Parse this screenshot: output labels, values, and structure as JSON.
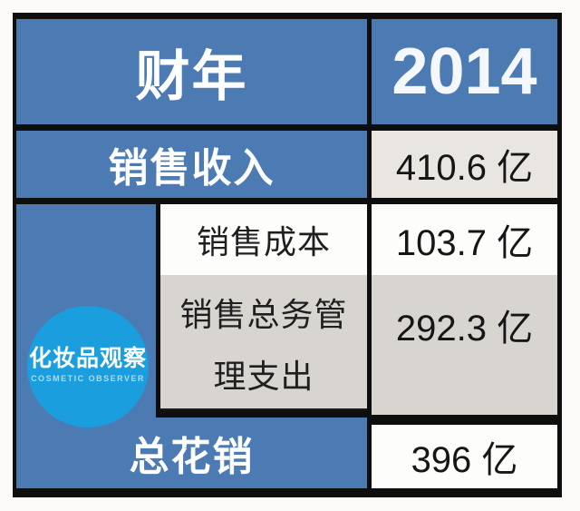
{
  "colors": {
    "table_blue": "#4c7bb4",
    "logo_blue": "#1b9ede",
    "cell_light_gray": "#e9e6e2",
    "cell_gray": "#d8d5d1",
    "border_black": "#0e0e0e"
  },
  "header": {
    "label": "财年",
    "value": "2014"
  },
  "rows": {
    "revenue": {
      "label": "销售收入",
      "value": "410.6 亿"
    },
    "cost": {
      "label": "销售成本",
      "value": "103.7 亿"
    },
    "sga": {
      "label_line1": "销售总务管",
      "label_line2": "理支出",
      "value": "292.3 亿"
    },
    "total": {
      "label": "总花销",
      "value": "396 亿"
    }
  },
  "watermark": {
    "title": "化妆品观察",
    "subtitle": "COSMETIC OBSERVER"
  },
  "chart_data": {
    "type": "table",
    "columns": [
      "财年",
      "2014"
    ],
    "rows": [
      {
        "label": "销售收入",
        "value": 410.6,
        "unit": "亿"
      },
      {
        "label": "销售成本",
        "value": 103.7,
        "unit": "亿"
      },
      {
        "label": "销售总务管理支出",
        "value": 292.3,
        "unit": "亿"
      },
      {
        "label": "总花销",
        "value": 396,
        "unit": "亿"
      }
    ]
  }
}
